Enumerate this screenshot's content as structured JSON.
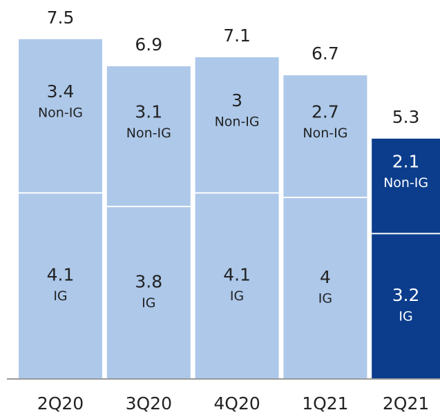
{
  "chart_data": {
    "type": "stacked-bar",
    "categories": [
      "2Q20",
      "3Q20",
      "4Q20",
      "1Q21",
      "2Q21"
    ],
    "series": [
      {
        "name": "IG",
        "values": [
          4.1,
          3.8,
          4.1,
          4.0,
          3.2
        ],
        "colors": [
          "#adc8e9",
          "#adc8e9",
          "#adc8e9",
          "#adc8e9",
          "#0b3d8c"
        ],
        "label_colors": [
          "#222222",
          "#222222",
          "#222222",
          "#222222",
          "#ffffff"
        ]
      },
      {
        "name": "Non-IG",
        "values": [
          3.4,
          3.1,
          3.0,
          2.7,
          2.1
        ],
        "colors": [
          "#adc8e9",
          "#adc8e9",
          "#adc8e9",
          "#adc8e9",
          "#0b3d8c"
        ],
        "label_colors": [
          "#222222",
          "#222222",
          "#222222",
          "#222222",
          "#ffffff"
        ]
      }
    ],
    "totals": [
      7.5,
      6.9,
      7.1,
      6.7,
      5.3
    ]
  }
}
